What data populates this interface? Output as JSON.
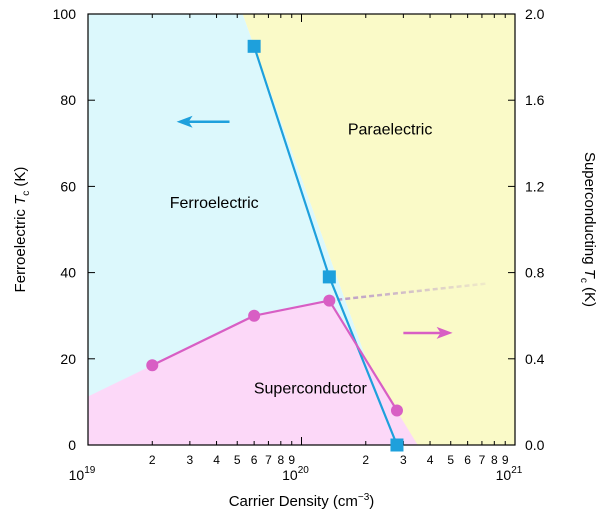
{
  "chart_data": {
    "type": "scatter",
    "x_scale": "log",
    "xlim": [
      1e+19,
      1e+21
    ],
    "ylim_left": [
      0,
      100
    ],
    "ylim_right": [
      0,
      2.0
    ],
    "xlabel_main": "Carrier Density (cm",
    "xlabel_sup": "−3",
    "xlabel_end": ")",
    "ylabel_left_main": "Ferroelectric ",
    "ylabel_left_italic": "T",
    "ylabel_left_sub": "c",
    "ylabel_left_end": " (K)",
    "ylabel_right_main": "Superconducting ",
    "ylabel_right_italic": "T",
    "ylabel_right_sub": "c",
    "ylabel_right_end": " (K)",
    "x_major_ticks": [
      {
        "value": 1e+19,
        "base": "10",
        "exp": "19"
      },
      {
        "value": 1e+20,
        "base": "10",
        "exp": "20"
      },
      {
        "value": 1e+21,
        "base": "10",
        "exp": "21"
      }
    ],
    "x_minor_ticks": [
      {
        "value": 2e+19,
        "label": "2"
      },
      {
        "value": 3e+19,
        "label": "3"
      },
      {
        "value": 4e+19,
        "label": "4"
      },
      {
        "value": 5e+19,
        "label": "5"
      },
      {
        "value": 6e+19,
        "label": "6"
      },
      {
        "value": 7e+19,
        "label": "7"
      },
      {
        "value": 8e+19,
        "label": "8"
      },
      {
        "value": 9e+19,
        "label": "9"
      },
      {
        "value": 2e+20,
        "label": "2"
      },
      {
        "value": 3e+20,
        "label": "3"
      },
      {
        "value": 4e+20,
        "label": "4"
      },
      {
        "value": 5e+20,
        "label": "5"
      },
      {
        "value": 6e+20,
        "label": "6"
      },
      {
        "value": 7e+20,
        "label": "7"
      },
      {
        "value": 8e+20,
        "label": "8"
      },
      {
        "value": 9e+20,
        "label": "9"
      }
    ],
    "y_left_ticks": [
      {
        "value": 0,
        "label": "0"
      },
      {
        "value": 20,
        "label": "20"
      },
      {
        "value": 40,
        "label": "40"
      },
      {
        "value": 60,
        "label": "60"
      },
      {
        "value": 80,
        "label": "80"
      },
      {
        "value": 100,
        "label": "100"
      }
    ],
    "y_right_ticks": [
      {
        "value": 0.0,
        "label": "0.0"
      },
      {
        "value": 0.4,
        "label": "0.4"
      },
      {
        "value": 0.8,
        "label": "0.8"
      },
      {
        "value": 1.2,
        "label": "1.2"
      },
      {
        "value": 1.6,
        "label": "1.6"
      },
      {
        "value": 2.0,
        "label": "2.0"
      }
    ],
    "series": [
      {
        "axis": "left",
        "marker": "square",
        "color": "#1ea0dc",
        "x": [
          6e+19,
          1.35e+20,
          2.8e+20
        ],
        "y": [
          92.5,
          39,
          0
        ]
      },
      {
        "axis": "right",
        "marker": "circle",
        "color": "#d85ec4",
        "x": [
          2e+19,
          6e+19,
          1.35e+20,
          2.8e+20
        ],
        "y": [
          0.37,
          0.6,
          0.67,
          0.16
        ]
      }
    ],
    "extrapolation": {
      "color": "#b897c8",
      "x": [
        1.35e+20,
        7.5e+20
      ],
      "y_left": [
        33.5,
        37.5
      ]
    },
    "regions": [
      {
        "name": "Ferroelectric",
        "label": "Ferroelectric",
        "color": "#dcf8fc",
        "label_x": 3.9e+19,
        "label_y": 55
      },
      {
        "name": "Paraelectric",
        "label": "Paraelectric",
        "color": "#fafac8",
        "label_x": 2.6e+20,
        "label_y": 72
      },
      {
        "name": "Superconductor",
        "label": "Superconductor",
        "color": "#fcd8f8",
        "label_x": 1.1e+20,
        "label_y": 12
      }
    ],
    "arrows": [
      {
        "direction": "left",
        "color": "#1ea0dc",
        "from_x": 4.6e+19,
        "to_x": 2.6e+19,
        "y": 75
      },
      {
        "direction": "right",
        "color": "#d85ec4",
        "from_x": 3e+20,
        "to_x": 5.1e+20,
        "y": 26
      }
    ]
  }
}
